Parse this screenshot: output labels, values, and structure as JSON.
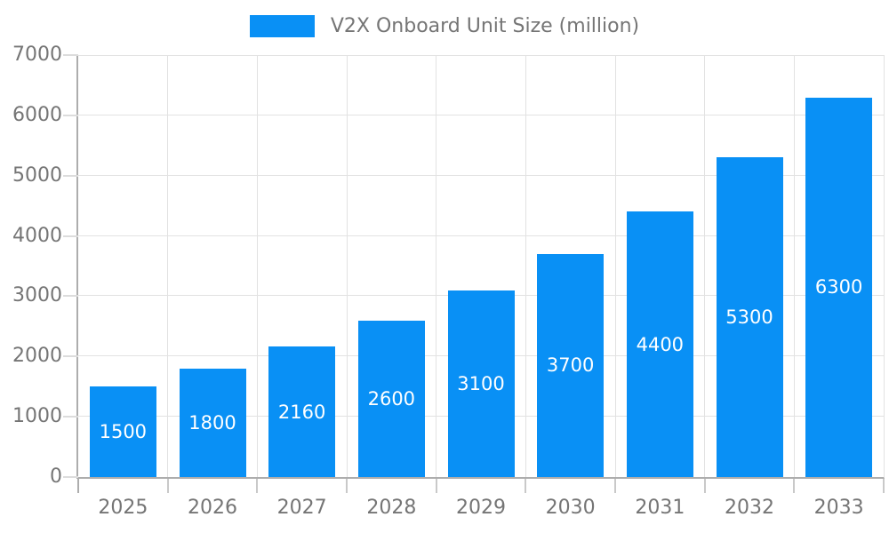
{
  "chart_data": {
    "type": "bar",
    "title": "V2X Onboard Unit Size (million)",
    "legend": {
      "position": "top",
      "label": "V2X Onboard Unit Size (million)"
    },
    "categories": [
      "2025",
      "2026",
      "2027",
      "2028",
      "2029",
      "2030",
      "2031",
      "2032",
      "2033"
    ],
    "series": [
      {
        "name": "V2X Onboard Unit Size (million)",
        "values": [
          1500,
          1800,
          2160,
          2600,
          3100,
          3700,
          4400,
          5300,
          6300
        ]
      }
    ],
    "xlabel": "",
    "ylabel": "",
    "ylim": [
      0,
      7000
    ],
    "yticks": [
      0,
      1000,
      2000,
      3000,
      4000,
      5000,
      6000,
      7000
    ],
    "grid": true,
    "data_labels": {
      "position": "inside-center",
      "color": "#FFFFFF"
    }
  },
  "colors": {
    "bar": "#0990F5",
    "grid": "#E2E2E2",
    "axis": "#ADADAD",
    "tick_y": "#DCDCDC",
    "tick_x": "#C9C9C9",
    "text": "#757575",
    "data_label": "#FFFFFF",
    "background": "#FFFFFF"
  }
}
